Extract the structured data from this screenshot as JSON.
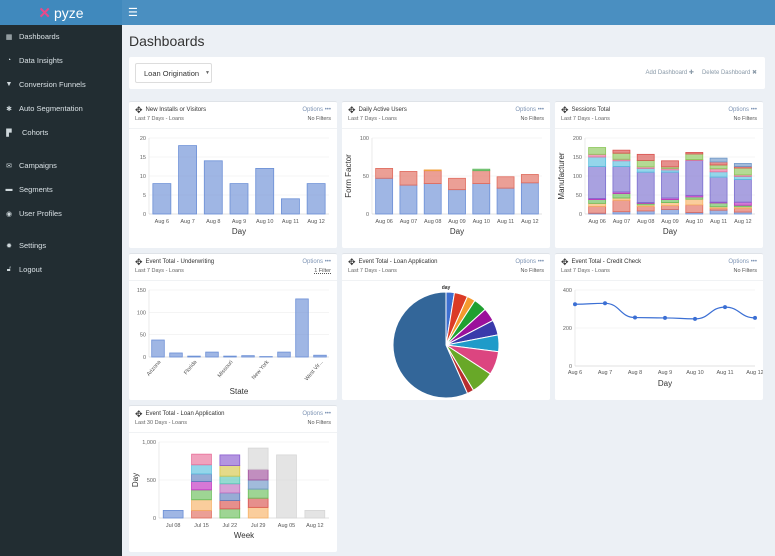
{
  "app": {
    "logo": "pyze",
    "menu_icon": "hamburger-icon"
  },
  "sidebar": {
    "items": [
      {
        "label": "Dashboards",
        "icon": "dashboard-icon"
      },
      {
        "label": "Data Insights",
        "icon": "dashboard-gauge-icon"
      },
      {
        "label": "Conversion Funnels",
        "icon": "funnel-icon"
      },
      {
        "label": "Auto Segmentation",
        "icon": "segmentation-icon"
      },
      {
        "label": "Cohorts",
        "icon": "cohorts-icon"
      },
      {
        "label": "Campaigns",
        "icon": "envelope-icon"
      },
      {
        "label": "Segments",
        "icon": "folder-icon"
      },
      {
        "label": "User Profiles",
        "icon": "user-circle-icon"
      },
      {
        "label": "Settings",
        "icon": "gear-icon"
      },
      {
        "label": "Logout",
        "icon": "unlock-icon"
      }
    ]
  },
  "page": {
    "title": "Dashboards",
    "dashboard_select": "Loan Origination",
    "add_dashboard": "Add Dashboard ✚",
    "delete_dashboard": "Delete Dashboard ✖"
  },
  "cards": [
    {
      "title": "New Installs or Visitors",
      "subtitle": "Last 7 Days  -  Loans",
      "options": "Options •••",
      "filters": "No Filters"
    },
    {
      "title": "Daily Active Users",
      "subtitle": "Last 7 Days  -  Loans",
      "options": "Options •••",
      "filters": "No Filters"
    },
    {
      "title": "Sessions Total",
      "subtitle": "Last 7 Days  -  Loans",
      "options": "Options •••",
      "filters": "No Filters"
    },
    {
      "title": "Event Total - Underwriting",
      "subtitle": "Last 7 Days  -  Loans",
      "options": "Options •••",
      "filters": "1 Filter"
    },
    {
      "title": "Event Total - Loan Application",
      "subtitle": "Last 7 Days  -  Loans",
      "options": "Options •••",
      "filters": "No Filters"
    },
    {
      "title": "Event Total - Credit Check",
      "subtitle": "Last 7 Days  -  Loans",
      "options": "Options •••",
      "filters": "No Filters"
    },
    {
      "title": "Event Total - Loan Application",
      "subtitle": "Last 30 Days  -  Loans",
      "options": "Options •••",
      "filters": "No Filters"
    }
  ],
  "chart_data": [
    {
      "type": "bar",
      "categories": [
        "Aug 6",
        "Aug 7",
        "Aug 8",
        "Aug 9",
        "Aug 10",
        "Aug 11",
        "Aug 12"
      ],
      "series": [
        {
          "name": "count",
          "color": "#6b8fd6",
          "values": [
            8,
            18,
            14,
            8,
            12,
            4,
            8
          ]
        }
      ],
      "xlabel": "Day",
      "ylabel": "",
      "ylim": [
        0,
        20
      ],
      "yticks": [
        0,
        5,
        10,
        15,
        20
      ],
      "ytick_labels": [
        "0",
        "5",
        "10",
        "15",
        "20"
      ]
    },
    {
      "type": "bar",
      "stacked": true,
      "categories": [
        "Aug 06",
        "Aug 07",
        "Aug 08",
        "Aug 09",
        "Aug 10",
        "Aug 11",
        "Aug 12"
      ],
      "series": [
        {
          "name": "s1",
          "color": "#6b8fd6",
          "values": [
            47,
            38,
            40,
            32,
            40,
            34,
            41
          ]
        },
        {
          "name": "s2",
          "color": "#e06c5e",
          "values": [
            13,
            18,
            17,
            15,
            17,
            15,
            11
          ]
        },
        {
          "name": "s3",
          "color": "#f0a040",
          "values": [
            0,
            0,
            1,
            0,
            0,
            0,
            0
          ]
        },
        {
          "name": "s4",
          "color": "#5cb85c",
          "values": [
            0,
            0,
            0,
            0,
            2,
            0,
            0
          ]
        }
      ],
      "xlabel": "Day",
      "ylabel": "Form Factor",
      "ylim": [
        0,
        100
      ],
      "yticks": [
        0,
        50,
        100
      ],
      "ytick_labels": [
        "0",
        "50",
        "100"
      ]
    },
    {
      "type": "bar",
      "stacked": true,
      "categories": [
        "Aug 06",
        "Aug 07",
        "Aug 08",
        "Aug 09",
        "Aug 10",
        "Aug 11",
        "Aug 12"
      ],
      "series": [
        {
          "name": "s1",
          "color": "#6b8fd6",
          "values": [
            2,
            6,
            8,
            12,
            4,
            10,
            5
          ]
        },
        {
          "name": "s2",
          "color": "#e06c5e",
          "values": [
            18,
            30,
            12,
            10,
            20,
            5,
            10
          ]
        },
        {
          "name": "s3",
          "color": "#f7b267",
          "values": [
            8,
            6,
            4,
            8,
            15,
            4,
            4
          ]
        },
        {
          "name": "s4",
          "color": "#6abf5a",
          "values": [
            10,
            12,
            4,
            8,
            6,
            10,
            4
          ]
        },
        {
          "name": "s5",
          "color": "#c030c0",
          "values": [
            3,
            4,
            2,
            4,
            4,
            2,
            8
          ]
        },
        {
          "name": "s6",
          "color": "#7b6fcf",
          "values": [
            84,
            67,
            80,
            68,
            92,
            66,
            60
          ]
        },
        {
          "name": "s7",
          "color": "#5bc0de",
          "values": [
            25,
            15,
            10,
            6,
            0,
            14,
            8
          ]
        },
        {
          "name": "s8",
          "color": "#e8709a",
          "values": [
            7,
            4,
            4,
            4,
            2,
            8,
            4
          ]
        },
        {
          "name": "s9",
          "color": "#8cc65a",
          "values": [
            18,
            16,
            17,
            4,
            15,
            10,
            18
          ]
        },
        {
          "name": "s10",
          "color": "#d9534f",
          "values": [
            0,
            8,
            16,
            16,
            4,
            8,
            4
          ]
        },
        {
          "name": "s11",
          "color": "#6f97c8",
          "values": [
            0,
            0,
            0,
            0,
            0,
            10,
            8
          ]
        }
      ],
      "xlabel": "Day",
      "ylabel": "Manufacturer",
      "ylim": [
        0,
        200
      ],
      "yticks": [
        0,
        50,
        100,
        150,
        200
      ],
      "ytick_labels": [
        "0",
        "50",
        "100",
        "150",
        "200"
      ]
    },
    {
      "type": "bar",
      "categories": [
        "Arizona",
        "",
        "Florida",
        "",
        "Missouri",
        "",
        "New York",
        "",
        "",
        "West Vir..."
      ],
      "series": [
        {
          "name": "count",
          "color": "#6b8fd6",
          "values": [
            38,
            9,
            2,
            11,
            2,
            3,
            1,
            11,
            130,
            4
          ]
        }
      ],
      "xlabel": "State",
      "ylabel": "",
      "ylim": [
        0,
        150
      ],
      "yticks": [
        0,
        50,
        100,
        150
      ],
      "ytick_labels": [
        "0",
        "50",
        "100",
        "150"
      ],
      "rotate_labels": true
    },
    {
      "type": "pie",
      "title": "day",
      "slices": [
        {
          "value": 2.5,
          "color": "#3d6fd1"
        },
        {
          "value": 4,
          "color": "#db3b26"
        },
        {
          "value": 2.5,
          "color": "#f59a2e"
        },
        {
          "value": 4,
          "color": "#20a030"
        },
        {
          "value": 4,
          "color": "#9b109b"
        },
        {
          "value": 4.5,
          "color": "#3a3aab"
        },
        {
          "value": 5,
          "color": "#1f9bc9"
        },
        {
          "value": 7,
          "color": "#dc4580"
        },
        {
          "value": 7,
          "color": "#68a828"
        },
        {
          "value": 2,
          "color": "#b82e2e"
        },
        {
          "value": 55.5,
          "color": "#336699"
        }
      ]
    },
    {
      "type": "line",
      "categories": [
        "Aug 6",
        "Aug 7",
        "Aug 8",
        "Aug 9",
        "Aug 10",
        "Aug 11",
        "Aug 12"
      ],
      "series": [
        {
          "name": "count",
          "color": "#3b6fd4",
          "values": [
            325,
            330,
            255,
            253,
            248,
            310,
            253
          ]
        }
      ],
      "xlabel": "Day",
      "ylabel": "",
      "ylim": [
        0,
        400
      ],
      "yticks": [
        0,
        200,
        400
      ],
      "ytick_labels": [
        "0",
        "200",
        "400"
      ]
    },
    {
      "type": "bar",
      "stacked": true,
      "categories": [
        "Jul 08",
        "Jul 15",
        "Jul 22",
        "Jul 29",
        "Aug 05",
        "Aug 12"
      ],
      "series": [
        {
          "name": "w1",
          "color": "#6b8fd6",
          "values": [
            100,
            0,
            0,
            0,
            0,
            0
          ]
        },
        {
          "name": "w2",
          "color": "#e06c5e",
          "values": [
            0,
            100,
            0,
            0,
            0,
            0
          ]
        },
        {
          "name": "w3",
          "color": "#f7b267",
          "values": [
            0,
            140,
            0,
            140,
            0,
            0
          ]
        },
        {
          "name": "w4",
          "color": "#6abf5a",
          "values": [
            0,
            130,
            120,
            0,
            0,
            0
          ]
        },
        {
          "name": "w5",
          "color": "#c030c0",
          "values": [
            0,
            110,
            0,
            0,
            0,
            0
          ]
        },
        {
          "name": "w6",
          "color": "#d9534f",
          "values": [
            0,
            0,
            110,
            120,
            0,
            0
          ]
        },
        {
          "name": "w7",
          "color": "#5f7fbf",
          "values": [
            0,
            100,
            100,
            0,
            0,
            0
          ]
        },
        {
          "name": "w8",
          "color": "#6abf5a",
          "values": [
            0,
            0,
            0,
            120,
            0,
            0
          ]
        },
        {
          "name": "w9",
          "color": "#c070c0",
          "values": [
            0,
            0,
            120,
            0,
            0,
            0
          ]
        },
        {
          "name": "w10",
          "color": "#6f97c8",
          "values": [
            0,
            0,
            0,
            120,
            0,
            0
          ]
        },
        {
          "name": "w11",
          "color": "#5bc7b8",
          "values": [
            0,
            0,
            100,
            0,
            0,
            0
          ]
        },
        {
          "name": "w12",
          "color": "#5bc0de",
          "values": [
            0,
            120,
            0,
            0,
            0,
            0
          ]
        },
        {
          "name": "w13",
          "color": "#a0529c",
          "values": [
            0,
            0,
            0,
            140,
            0,
            0
          ]
        },
        {
          "name": "w14",
          "color": "#d6c64a",
          "values": [
            0,
            0,
            140,
            0,
            0,
            0
          ]
        },
        {
          "name": "w15",
          "color": "#e8709a",
          "values": [
            0,
            140,
            0,
            0,
            0,
            0
          ]
        },
        {
          "name": "w16",
          "color": "#8a5cd0",
          "values": [
            0,
            0,
            140,
            0,
            0,
            0
          ]
        },
        {
          "name": "w17",
          "color": "#d6d6d6",
          "values": [
            0,
            0,
            0,
            280,
            830,
            100
          ]
        }
      ],
      "xlabel": "Week",
      "ylabel": "Day",
      "ylim": [
        0,
        1000
      ],
      "yticks": [
        0,
        500,
        1000
      ],
      "ytick_labels": [
        "0",
        "500",
        "1,000"
      ]
    }
  ]
}
